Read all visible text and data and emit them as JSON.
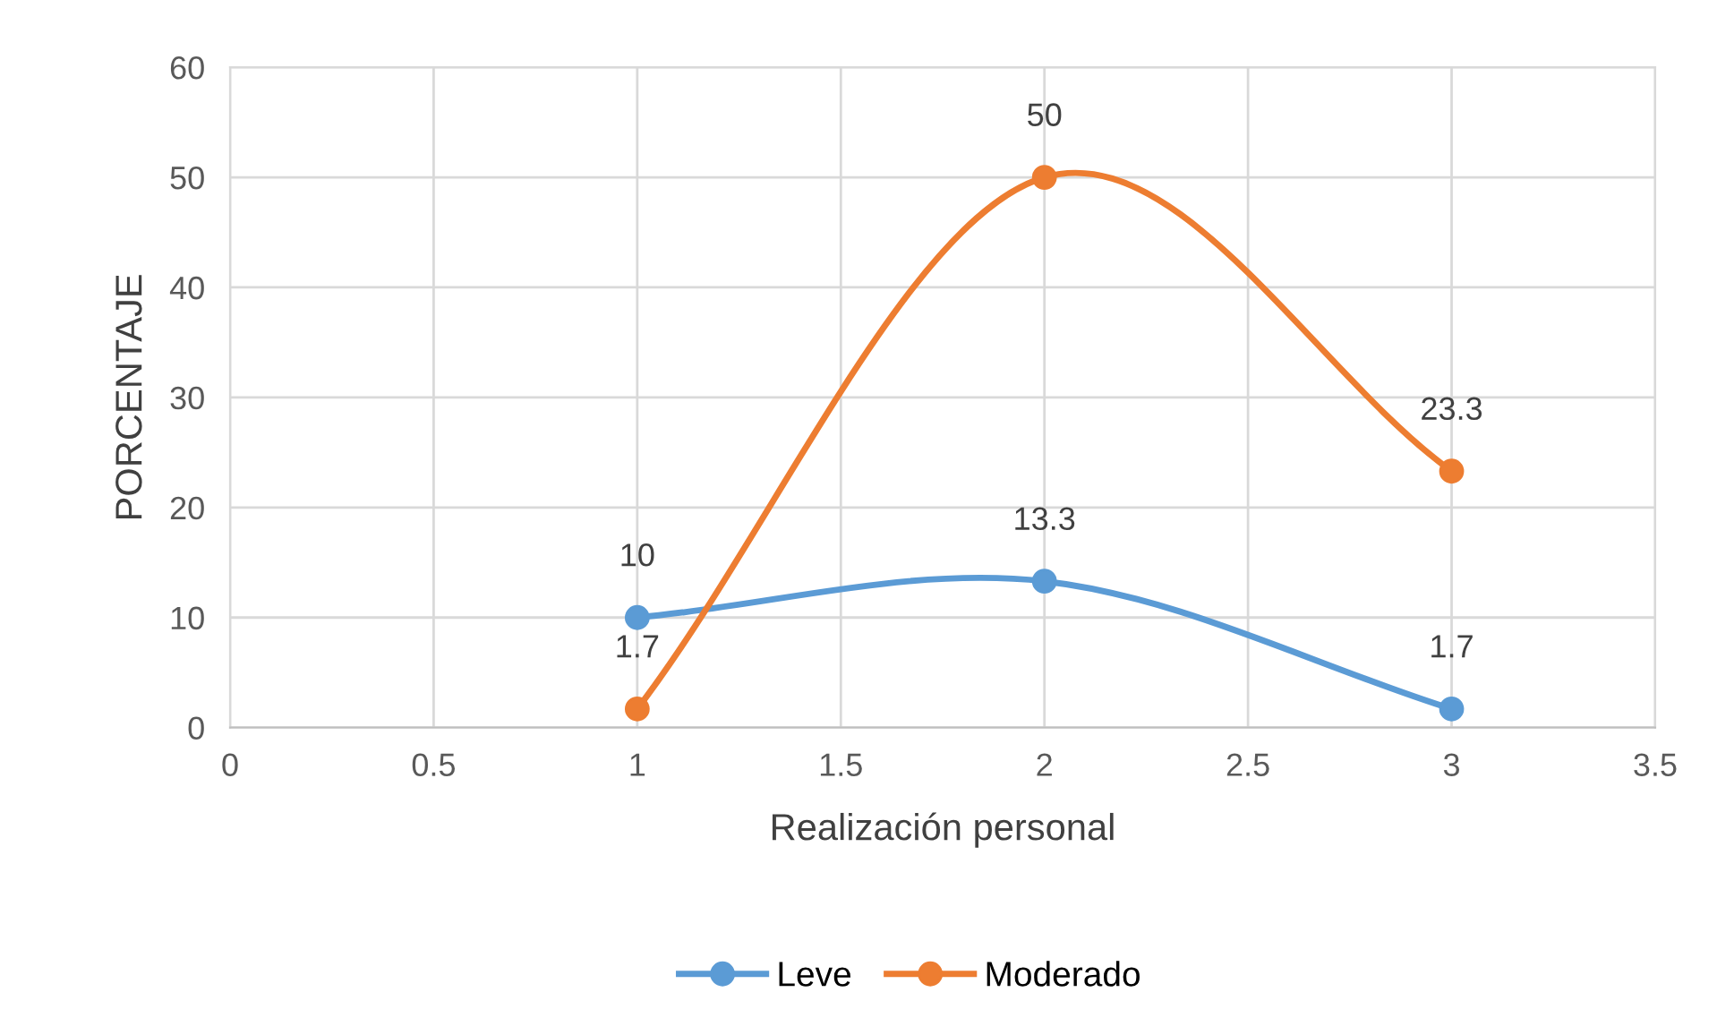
{
  "chart_data": {
    "type": "line",
    "xlabel": "Realización personal",
    "ylabel": "PORCENTAJE",
    "x": [
      1,
      2,
      3
    ],
    "series": [
      {
        "name": "Leve",
        "color": "#5b9bd5",
        "values": [
          10,
          13.3,
          1.7
        ]
      },
      {
        "name": "Moderado",
        "color": "#ed7d31",
        "values": [
          1.7,
          50,
          23.3
        ]
      }
    ],
    "xlim": [
      0,
      3.5
    ],
    "xticks": [
      0,
      0.5,
      1,
      1.5,
      2,
      2.5,
      3,
      3.5
    ],
    "ylim": [
      0,
      60
    ],
    "yticks": [
      0,
      10,
      20,
      30,
      40,
      50,
      60
    ],
    "grid": true,
    "legend": "bottom",
    "marker": "circle",
    "line_style": "solid",
    "data_labels": true
  }
}
